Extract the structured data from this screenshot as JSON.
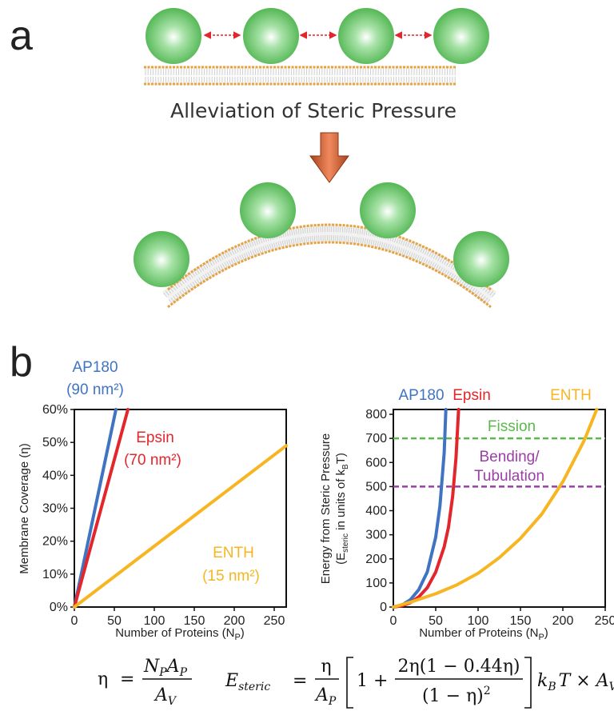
{
  "panel_a": {
    "label": "a",
    "caption": "Alleviation of Steric Pressure"
  },
  "panel_b": {
    "label": "b"
  },
  "colors": {
    "ap180": "#3f74c3",
    "epsin": "#e3262b",
    "enth": "#f7b522",
    "fission": "#5bb94c",
    "bending": "#9b3ea6",
    "protein": "#6ccb6c",
    "arrow": "#d9673a"
  },
  "chart_data": [
    {
      "type": "line",
      "title": "",
      "xlabel": "Number of Proteins (N",
      "xlabel_sub": "P",
      "xlabel_end": ")",
      "ylabel": "Membrane Coverage (",
      "ylabel_sym": "η",
      "ylabel_end": ")",
      "xlim": [
        0,
        265
      ],
      "ylim": [
        0,
        60
      ],
      "xticks": [
        "0",
        "50",
        "100",
        "150",
        "200",
        "250"
      ],
      "xtick_values": [
        0,
        50,
        100,
        150,
        200,
        250
      ],
      "yticks": [
        "0%",
        "10%",
        "20%",
        "30%",
        "40%",
        "50%",
        "60%"
      ],
      "ytick_values": [
        0,
        10,
        20,
        30,
        40,
        50,
        60
      ],
      "series": [
        {
          "name": "AP180",
          "note": "(90 nm²)",
          "key": "ap180",
          "x": [
            0,
            52
          ],
          "y": [
            0,
            60
          ]
        },
        {
          "name": "Epsin",
          "note": "(70 nm²)",
          "key": "epsin",
          "x": [
            0,
            67
          ],
          "y": [
            0,
            60
          ]
        },
        {
          "name": "ENTH",
          "note": "(15 nm²)",
          "key": "enth",
          "x": [
            0,
            265
          ],
          "y": [
            0,
            49
          ]
        }
      ]
    },
    {
      "type": "line",
      "title": "",
      "xlabel": "Number of Proteins (N",
      "xlabel_sub": "P",
      "xlabel_end": ")",
      "ylabel_line1": "Energy from Steric Pressure",
      "ylabel_line2": "(E",
      "ylabel_line2_sub": "steric",
      "ylabel_line2_end": " in units of k",
      "ylabel_line2_sub2": "B",
      "ylabel_line2_end2": "T)",
      "xlim": [
        0,
        250
      ],
      "ylim": [
        0,
        820
      ],
      "xticks": [
        "0",
        "50",
        "100",
        "150",
        "200",
        "250"
      ],
      "xtick_values": [
        0,
        50,
        100,
        150,
        200,
        250
      ],
      "yticks": [
        "0",
        "100",
        "200",
        "300",
        "400",
        "500",
        "600",
        "700",
        "800"
      ],
      "ytick_values": [
        0,
        100,
        200,
        300,
        400,
        500,
        600,
        700,
        800
      ],
      "series": [
        {
          "name": "AP180",
          "key": "ap180",
          "x": [
            0,
            10,
            20,
            30,
            40,
            50,
            55,
            60,
            62
          ],
          "y": [
            0,
            8,
            30,
            72,
            145,
            290,
            420,
            640,
            820
          ]
        },
        {
          "name": "Epsin",
          "key": "epsin",
          "x": [
            0,
            10,
            20,
            30,
            40,
            50,
            60,
            65,
            70,
            74,
            77
          ],
          "y": [
            0,
            5,
            18,
            42,
            80,
            145,
            250,
            330,
            460,
            620,
            820
          ]
        },
        {
          "name": "ENTH",
          "key": "enth",
          "x": [
            0,
            20,
            50,
            75,
            100,
            125,
            150,
            175,
            200,
            225,
            240
          ],
          "y": [
            0,
            20,
            55,
            92,
            140,
            205,
            285,
            385,
            520,
            690,
            820
          ]
        }
      ],
      "thresholds": [
        {
          "name": "Fission",
          "key": "fission",
          "y": 700
        },
        {
          "name": "Bending/",
          "name2": "Tubulation",
          "key": "bending",
          "y": 500
        }
      ]
    }
  ],
  "equations": {
    "eta_lhs": "η",
    "eta_num": "N",
    "eta_num_sub1": "P",
    "eta_num_mid": "A",
    "eta_num_sub2": "P",
    "eta_den": "A",
    "eta_den_sub": "V",
    "e_lhs": "E",
    "e_lhs_sub": "steric",
    "e_frac_num": "η",
    "e_frac_den": "A",
    "e_frac_den_sub": "P",
    "e_one_plus": "1 +",
    "e_inner_num": "2η(1 − 0.44η)",
    "e_inner_den": "(1 − η)",
    "e_inner_den_sup": "2",
    "e_tail1": "k",
    "e_tail1_sub": "B",
    "e_tail2": "T × A",
    "e_tail2_sub": "V",
    "equals": "="
  }
}
